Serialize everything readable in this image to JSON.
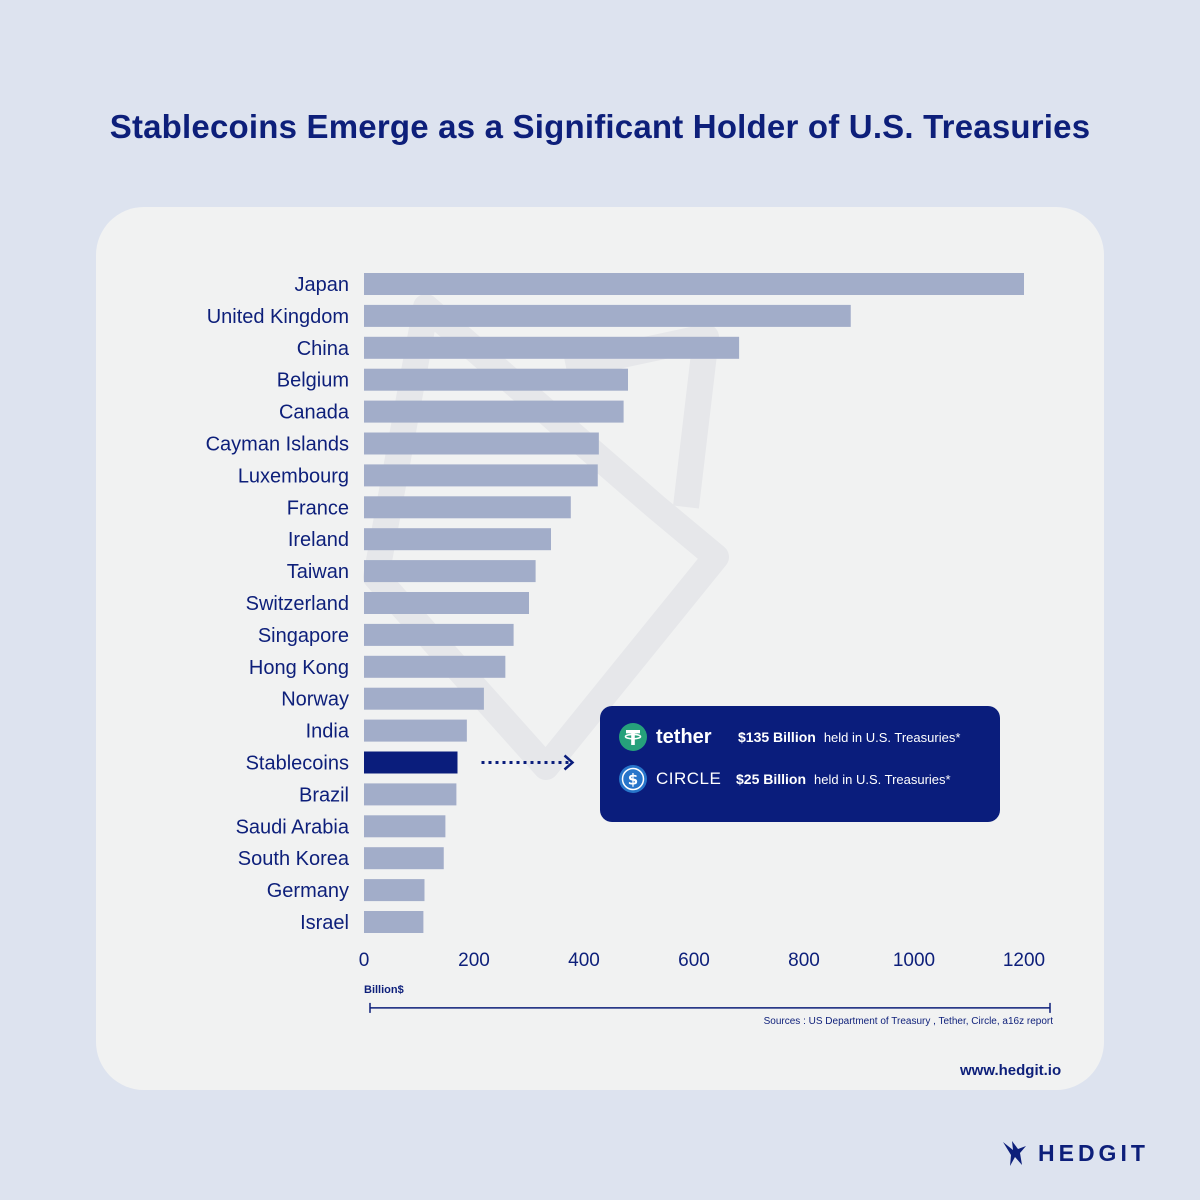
{
  "title": "Stablecoins Emerge as a Significant Holder of U.S. Treasuries",
  "chart_data": {
    "type": "bar",
    "orientation": "horizontal",
    "categories": [
      "Japan",
      "United Kingdom",
      "China",
      "Belgium",
      "Canada",
      "Cayman Islands",
      "Luxembourg",
      "France",
      "Ireland",
      "Taiwan",
      "Switzerland",
      "Singapore",
      "Hong Kong",
      "Norway",
      "India",
      "Stablecoins",
      "Brazil",
      "Saudi Arabia",
      "South Korea",
      "Germany",
      "Israel"
    ],
    "values": [
      1200,
      885,
      682,
      480,
      472,
      427,
      425,
      376,
      340,
      312,
      300,
      272,
      257,
      218,
      187,
      170,
      168,
      148,
      145,
      110,
      108
    ],
    "highlight": "Stablecoins",
    "xlim": [
      0,
      1200
    ],
    "xticks": [
      0,
      200,
      400,
      600,
      800,
      1000,
      1200
    ],
    "xticks_labels": [
      "0",
      "200",
      "400",
      "600",
      "800",
      "1000",
      "1200"
    ],
    "xlabel": "Billion$",
    "source": "Sources : US Department of Treasury , Tether, Circle, a16z report",
    "colors": {
      "bar": "#a2adc9",
      "highlight": "#0a1d7c",
      "text": "#0d1f7a"
    }
  },
  "callout": {
    "tether": {
      "name": "tether",
      "amount": "$135 Billion",
      "desc": "held in U.S. Treasuries*"
    },
    "circle": {
      "name": "CIRCLE",
      "amount": "$25 Billion",
      "desc": "held in U.S. Treasuries*"
    }
  },
  "website": "www.hedgit.io",
  "brand": "HEDGIT"
}
